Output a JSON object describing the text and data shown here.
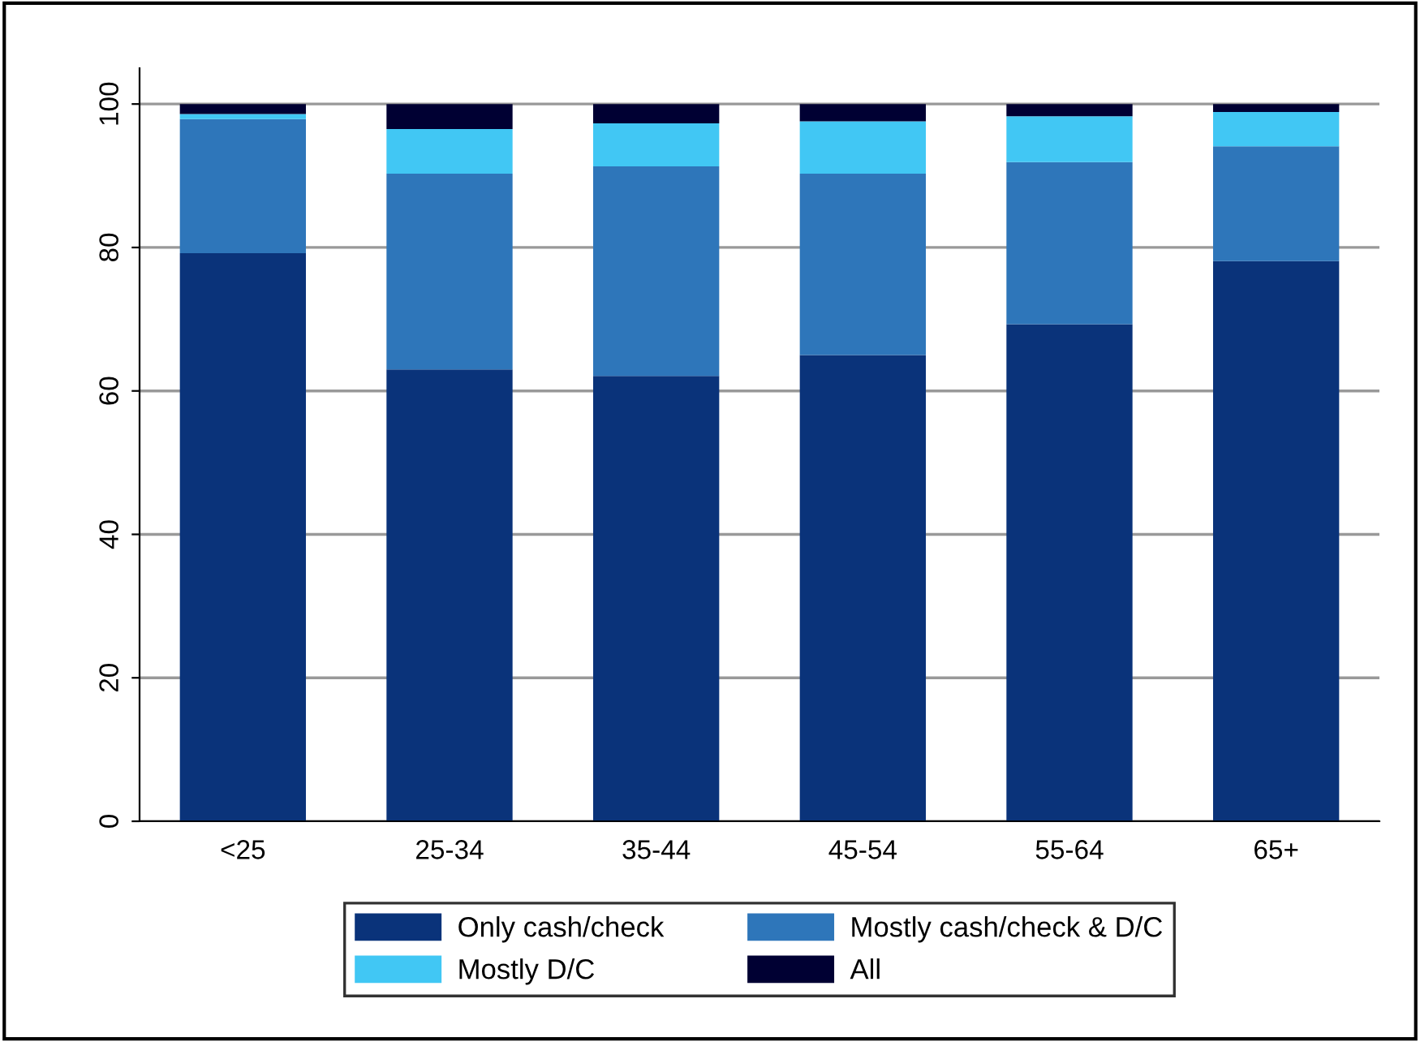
{
  "chart_data": {
    "type": "bar",
    "stacked": true,
    "categories": [
      "<25",
      "25-34",
      "35-44",
      "45-54",
      "55-64",
      "65+"
    ],
    "series": [
      {
        "name": "Only cash/check",
        "color": "#0a337a",
        "values": [
          79.2,
          63.0,
          62.1,
          65.0,
          69.3,
          78.1
        ]
      },
      {
        "name": "Mostly cash/check & D/C",
        "color": "#2e76ba",
        "values": [
          18.7,
          27.3,
          29.2,
          25.3,
          22.6,
          16.0
        ]
      },
      {
        "name": "Mostly D/C",
        "color": "#41c7f4",
        "values": [
          0.7,
          6.2,
          6.0,
          7.3,
          6.4,
          4.8
        ]
      },
      {
        "name": "All",
        "color": "#000033",
        "values": [
          1.4,
          3.5,
          2.7,
          2.4,
          1.7,
          1.1
        ]
      }
    ],
    "ylim": [
      0,
      105
    ],
    "yticks": [
      0,
      20,
      40,
      60,
      80,
      100
    ],
    "grid": "y",
    "legend": "bottom"
  }
}
